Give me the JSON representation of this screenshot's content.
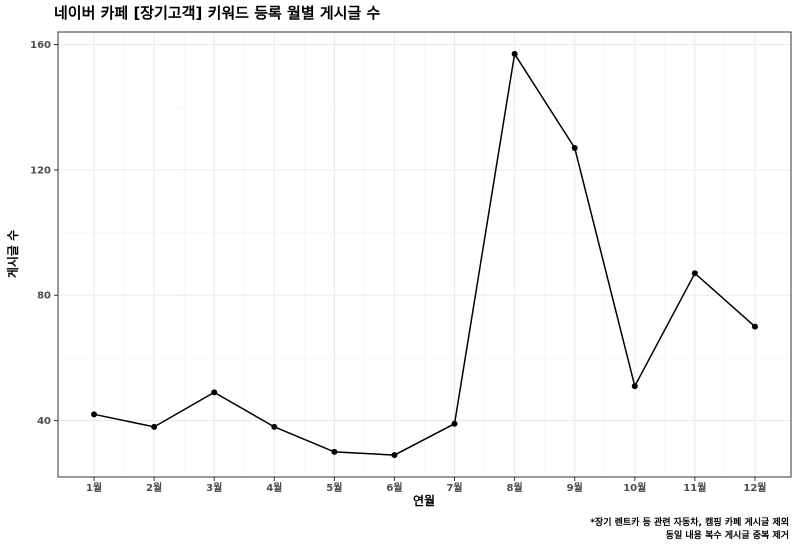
{
  "chart_data": {
    "type": "line",
    "title": "네이버 카페 [장기고객] 키워드 등록 월별 게시글 수",
    "xlabel": "연월",
    "ylabel": "게시글 수",
    "categories": [
      "1월",
      "2월",
      "3월",
      "4월",
      "5월",
      "6월",
      "7월",
      "8월",
      "9월",
      "10월",
      "11월",
      "12월"
    ],
    "values": [
      42,
      38,
      49,
      38,
      30,
      29,
      39,
      157,
      127,
      51,
      87,
      70
    ],
    "ylim": [
      22,
      164
    ],
    "yticks": [
      40,
      80,
      120,
      160
    ],
    "grid": true,
    "legend": "none",
    "caption": [
      "*장기 렌트카 등 관련 자동차, 캠핑 카페 게시글 제외",
      "동일 내용 복수 게시글 중복 제거"
    ],
    "colors": {
      "line": "#000000",
      "point": "#000000",
      "grid": "#ebebeb"
    }
  }
}
